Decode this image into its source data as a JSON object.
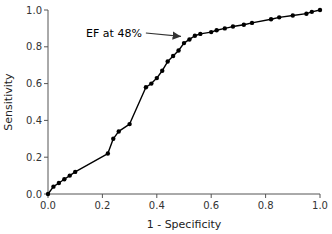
{
  "chart_data": {
    "type": "line",
    "x": [
      0.0,
      0.02,
      0.04,
      0.06,
      0.08,
      0.1,
      0.22,
      0.24,
      0.26,
      0.3,
      0.36,
      0.38,
      0.4,
      0.42,
      0.44,
      0.46,
      0.48,
      0.5,
      0.52,
      0.54,
      0.56,
      0.6,
      0.62,
      0.65,
      0.68,
      0.72,
      0.75,
      0.82,
      0.85,
      0.9,
      0.95,
      0.97,
      1.0
    ],
    "values": [
      0.0,
      0.04,
      0.06,
      0.08,
      0.1,
      0.12,
      0.22,
      0.3,
      0.34,
      0.38,
      0.58,
      0.6,
      0.63,
      0.67,
      0.72,
      0.75,
      0.78,
      0.82,
      0.84,
      0.86,
      0.87,
      0.88,
      0.89,
      0.9,
      0.91,
      0.92,
      0.93,
      0.95,
      0.96,
      0.97,
      0.98,
      0.99,
      1.0
    ],
    "color": "#000000",
    "marker": "circle",
    "x_label": "1 - Specificity",
    "y_label": "Sensitivity",
    "annotations": [
      {
        "text": "EF at 48%",
        "x": 0.5,
        "y": 0.855,
        "text_x": 0.14,
        "text_y": 0.875
      }
    ],
    "xlim": [
      0.0,
      1.0
    ],
    "ylim": [
      0.0,
      1.0
    ],
    "xticks": [
      {
        "value": 0.0,
        "label": "0.0"
      },
      0.2,
      0.4,
      0.6,
      0.8,
      {
        "value": 1.0,
        "label": "1.0"
      }
    ],
    "yticks": [
      {
        "value": 0.0,
        "label": "0.0"
      },
      0.2,
      0.4,
      0.6,
      0.8,
      {
        "value": 1.0,
        "label": "1.0"
      }
    ],
    "grid": false
  }
}
